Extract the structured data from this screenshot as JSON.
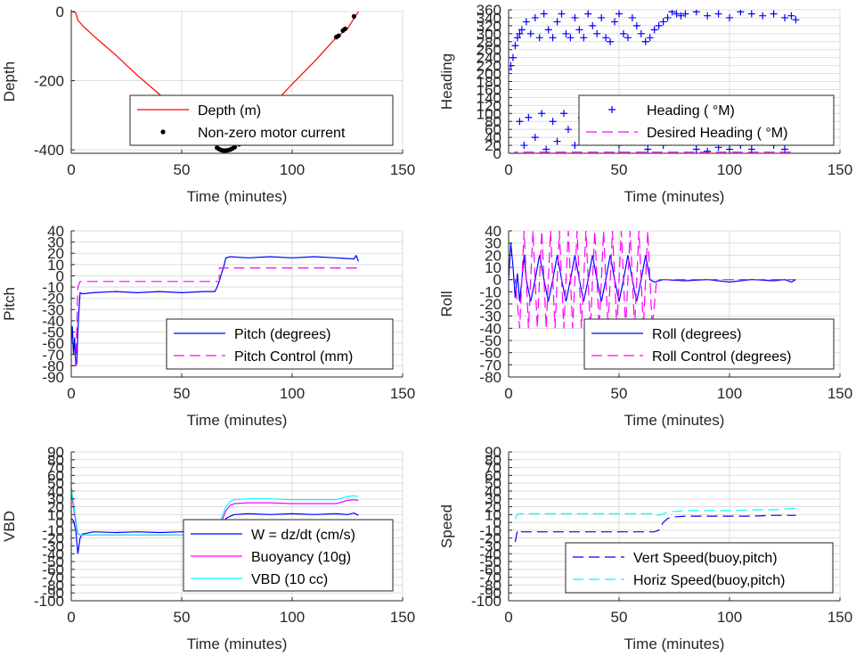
{
  "chart_data": [
    {
      "id": "depth",
      "type": "line",
      "xlabel": "Time (minutes)",
      "ylabel": "Depth",
      "xlim": [
        0,
        150
      ],
      "ylim": [
        -410,
        5
      ],
      "xticks": [
        0,
        50,
        100,
        150
      ],
      "yticks": [
        0,
        -200,
        -400
      ],
      "grid": true,
      "legend_position": "lower-right",
      "series": [
        {
          "name": "Depth (m)",
          "style": "line",
          "color": "#ff0000",
          "x": [
            0,
            2,
            3,
            5,
            10,
            20,
            30,
            40,
            50,
            60,
            66,
            68,
            70,
            72,
            75,
            80,
            90,
            100,
            110,
            120,
            125,
            128,
            130
          ],
          "y": [
            0,
            -3,
            -25,
            -40,
            -70,
            -125,
            -185,
            -240,
            -300,
            -355,
            -392,
            -400,
            -402,
            -399,
            -385,
            -348,
            -278,
            -210,
            -145,
            -75,
            -50,
            -20,
            0
          ]
        },
        {
          "name": "Non-zero motor current",
          "style": "dots",
          "color": "#000000",
          "x": [
            66,
            67,
            68,
            69,
            70,
            71,
            72,
            73,
            74,
            76,
            120,
            121,
            123,
            124,
            128
          ],
          "y": [
            -394,
            -398,
            -401,
            -402,
            -402,
            -401,
            -399,
            -396,
            -392,
            -384,
            -74,
            -70,
            -55,
            -50,
            -14
          ]
        }
      ]
    },
    {
      "id": "heading",
      "type": "scatter",
      "xlabel": "Time (minutes)",
      "ylabel": "Heading",
      "xlim": [
        0,
        150
      ],
      "ylim": [
        0,
        360
      ],
      "xticks": [
        0,
        50,
        100,
        150
      ],
      "yticks": [
        0,
        20,
        40,
        60,
        80,
        100,
        120,
        140,
        160,
        180,
        200,
        220,
        240,
        260,
        280,
        300,
        320,
        340,
        360
      ],
      "grid": true,
      "legend_position": "lower-right",
      "series": [
        {
          "name": "Heading ( °M)",
          "style": "plus",
          "color": "#0000ff",
          "x": [
            0,
            1,
            2,
            3,
            4,
            5,
            6,
            8,
            10,
            12,
            14,
            16,
            18,
            20,
            22,
            24,
            26,
            28,
            30,
            32,
            34,
            36,
            38,
            40,
            42,
            44,
            46,
            48,
            50,
            52,
            54,
            56,
            58,
            60,
            62,
            64,
            66,
            68,
            70,
            72,
            74,
            76,
            78,
            80,
            85,
            90,
            95,
            100,
            105,
            110,
            115,
            120,
            125,
            128,
            130,
            5,
            7,
            9,
            12,
            15,
            17,
            20,
            22,
            25,
            27,
            30,
            33,
            35,
            38,
            40,
            43,
            45,
            48,
            50,
            53,
            55,
            58,
            60,
            63,
            65,
            68,
            70,
            85,
            90,
            95,
            100,
            105,
            110,
            115,
            120,
            125
          ],
          "y": [
            210,
            220,
            240,
            270,
            290,
            300,
            310,
            330,
            300,
            340,
            290,
            350,
            310,
            290,
            330,
            350,
            300,
            290,
            340,
            310,
            290,
            350,
            320,
            300,
            340,
            290,
            280,
            330,
            350,
            300,
            290,
            340,
            320,
            300,
            280,
            290,
            310,
            320,
            330,
            340,
            355,
            350,
            345,
            350,
            355,
            345,
            350,
            340,
            355,
            350,
            345,
            350,
            340,
            345,
            335,
            80,
            20,
            90,
            40,
            100,
            10,
            80,
            30,
            100,
            60,
            20,
            90,
            40,
            110,
            70,
            30,
            100,
            50,
            20,
            80,
            40,
            110,
            60,
            10,
            90,
            50,
            20,
            10,
            5,
            15,
            10,
            20,
            10,
            30,
            20,
            10
          ]
        },
        {
          "name": "Desired Heading ( °M)",
          "style": "dash",
          "color": "#ff00ff",
          "x": [
            0,
            3,
            3,
            130
          ],
          "y": [
            0,
            0,
            3,
            3
          ]
        }
      ]
    },
    {
      "id": "pitch",
      "type": "line",
      "xlabel": "Time (minutes)",
      "ylabel": "Pitch",
      "xlim": [
        0,
        150
      ],
      "ylim": [
        -90,
        40
      ],
      "xticks": [
        0,
        50,
        100,
        150
      ],
      "yticks": [
        40,
        30,
        20,
        10,
        0,
        -10,
        -20,
        -30,
        -40,
        -50,
        -60,
        -70,
        -80,
        -90
      ],
      "grid": true,
      "legend_position": "lower-right",
      "series": [
        {
          "name": "Pitch (degrees)",
          "style": "line",
          "color": "#0000ff",
          "x": [
            0,
            0.5,
            1,
            1.5,
            2,
            2.5,
            3,
            3.5,
            4,
            5,
            10,
            20,
            30,
            40,
            50,
            60,
            65,
            66,
            67,
            68,
            69,
            70,
            72,
            80,
            90,
            100,
            110,
            120,
            128,
            129,
            130
          ],
          "y": [
            -60,
            -45,
            -70,
            -55,
            -80,
            -78,
            -50,
            -30,
            -15,
            -16,
            -15,
            -14,
            -15,
            -14,
            -15,
            -14,
            -14,
            -10,
            -5,
            2,
            8,
            16,
            17,
            16,
            17,
            16,
            17,
            16,
            15,
            18,
            13
          ]
        },
        {
          "name": "Pitch Control (mm)",
          "style": "dash",
          "color": "#ff00ff",
          "x": [
            0,
            2,
            3,
            4,
            67,
            67,
            130
          ],
          "y": [
            -80,
            -80,
            -10,
            -5,
            -5,
            7,
            7
          ]
        }
      ]
    },
    {
      "id": "roll",
      "type": "line",
      "xlabel": "Time (minutes)",
      "ylabel": "Roll",
      "xlim": [
        0,
        150
      ],
      "ylim": [
        -80,
        40
      ],
      "xticks": [
        0,
        50,
        100,
        150
      ],
      "yticks": [
        40,
        30,
        20,
        10,
        0,
        -10,
        -20,
        -30,
        -40,
        -50,
        -60,
        -70,
        -80
      ],
      "grid": true,
      "legend_position": "lower-right",
      "series": [
        {
          "name": "Roll (degrees)",
          "style": "line",
          "color": "#0000ff",
          "x": [
            0,
            1,
            2,
            3,
            4,
            5,
            6,
            7,
            8,
            10,
            12,
            14,
            16,
            18,
            20,
            22,
            24,
            26,
            28,
            30,
            32,
            34,
            36,
            38,
            40,
            42,
            44,
            46,
            48,
            50,
            52,
            54,
            56,
            58,
            60,
            62,
            64,
            66,
            68,
            70,
            80,
            90,
            100,
            110,
            120,
            125,
            128,
            130
          ],
          "y": [
            0,
            30,
            10,
            -15,
            5,
            -18,
            0,
            20,
            0,
            -18,
            0,
            20,
            0,
            -18,
            0,
            20,
            0,
            -18,
            0,
            20,
            0,
            -18,
            0,
            20,
            0,
            -18,
            0,
            20,
            0,
            -18,
            0,
            20,
            0,
            -18,
            0,
            20,
            0,
            -2,
            -1,
            0,
            -1,
            0,
            -2,
            0,
            -1,
            0,
            -2,
            0
          ]
        },
        {
          "name": "Roll Control (degrees)",
          "style": "dash",
          "color": "#ff00ff",
          "x": [
            0,
            3,
            5,
            7,
            9,
            11,
            13,
            15,
            17,
            19,
            21,
            23,
            25,
            27,
            29,
            31,
            33,
            35,
            37,
            39,
            41,
            43,
            45,
            47,
            49,
            51,
            53,
            55,
            57,
            59,
            61,
            63,
            65,
            67,
            70,
            80,
            90,
            100,
            110,
            120,
            130
          ],
          "y": [
            0,
            0,
            -40,
            40,
            -40,
            40,
            -40,
            40,
            -40,
            40,
            -40,
            40,
            -40,
            40,
            -40,
            40,
            -40,
            40,
            -40,
            40,
            -40,
            40,
            -40,
            40,
            -40,
            40,
            -40,
            40,
            -40,
            40,
            -40,
            40,
            -40,
            0,
            0,
            0,
            0,
            0,
            0,
            0,
            0
          ]
        }
      ]
    },
    {
      "id": "vbd",
      "type": "line",
      "xlabel": "Time (minutes)",
      "ylabel": "VBD",
      "xlim": [
        0,
        150
      ],
      "ylim": [
        -100,
        90
      ],
      "xticks": [
        0,
        50,
        100,
        150
      ],
      "yticks": [
        90,
        80,
        70,
        60,
        50,
        40,
        30,
        20,
        10,
        0,
        -10,
        -20,
        -30,
        -40,
        -50,
        -60,
        -70,
        -80,
        -90,
        -100
      ],
      "grid": true,
      "legend_position": "lower-right",
      "series": [
        {
          "name": "W = dz/dt (cm/s)",
          "style": "line",
          "color": "#0000ff",
          "x": [
            0,
            1,
            2,
            3,
            4,
            5,
            10,
            20,
            30,
            40,
            50,
            60,
            66,
            68,
            70,
            72,
            74,
            80,
            90,
            100,
            110,
            120,
            125,
            128,
            130
          ],
          "y": [
            5,
            2,
            -10,
            -40,
            -20,
            -15,
            -12,
            -13,
            -12,
            -13,
            -12,
            -11,
            -10,
            -5,
            5,
            8,
            10,
            11,
            10,
            11,
            10,
            11,
            10,
            12,
            9
          ]
        },
        {
          "name": "Buoyancy (10g)",
          "style": "line",
          "color": "#ff00ff",
          "x": [
            0,
            1,
            2,
            3,
            4,
            5,
            10,
            20,
            30,
            40,
            50,
            60,
            66,
            68,
            70,
            72,
            74,
            80,
            90,
            100,
            110,
            120,
            125,
            128,
            130
          ],
          "y": [
            40,
            20,
            0,
            -15,
            -16,
            -16,
            -16,
            -16,
            -16,
            -16,
            -16,
            -16,
            -16,
            0,
            15,
            22,
            24,
            25,
            25,
            24,
            24,
            24,
            28,
            29,
            28
          ]
        },
        {
          "name": "VBD (10 cc)",
          "style": "line",
          "color": "#00ffff",
          "x": [
            0,
            1,
            2,
            3,
            4,
            5,
            10,
            20,
            30,
            40,
            50,
            60,
            66,
            68,
            70,
            72,
            74,
            80,
            90,
            100,
            110,
            120,
            125,
            128,
            130
          ],
          "y": [
            45,
            25,
            5,
            -14,
            -16,
            -16,
            -16,
            -16,
            -16,
            -16,
            -16,
            -16,
            -15,
            5,
            20,
            27,
            29,
            30,
            30,
            29,
            29,
            29,
            33,
            34,
            33
          ]
        }
      ]
    },
    {
      "id": "speed",
      "type": "line",
      "xlabel": "Time (minutes)",
      "ylabel": "Speed",
      "xlim": [
        0,
        150
      ],
      "ylim": [
        -100,
        90
      ],
      "xticks": [
        0,
        50,
        100,
        150
      ],
      "yticks": [
        90,
        80,
        70,
        60,
        50,
        40,
        30,
        20,
        10,
        0,
        -10,
        -20,
        -30,
        -40,
        -50,
        -60,
        -70,
        -80,
        -90,
        -100
      ],
      "grid": true,
      "legend_position": "lower-right",
      "series": [
        {
          "name": "Vert Speed(buoy,pitch)",
          "style": "dash",
          "color": "#0000ff",
          "x": [
            3,
            4,
            5,
            10,
            20,
            30,
            40,
            50,
            60,
            66,
            68,
            70,
            72,
            75,
            80,
            90,
            100,
            110,
            120,
            130
          ],
          "y": [
            -25,
            -10,
            -12,
            -12,
            -12,
            -12,
            -12,
            -12,
            -12,
            -12,
            -10,
            0,
            5,
            7,
            8,
            8,
            8,
            8,
            9,
            9
          ]
        },
        {
          "name": "Horiz Speed(buoy,pitch)",
          "style": "dash",
          "color": "#00ffff",
          "x": [
            3,
            4,
            5,
            10,
            20,
            30,
            40,
            50,
            60,
            66,
            68,
            70,
            72,
            75,
            80,
            90,
            100,
            110,
            120,
            125,
            130
          ],
          "y": [
            5,
            10,
            11,
            11,
            11,
            11,
            11,
            11,
            11,
            11,
            9,
            11,
            13,
            14,
            15,
            15,
            15,
            16,
            16,
            17,
            18
          ]
        }
      ]
    }
  ]
}
